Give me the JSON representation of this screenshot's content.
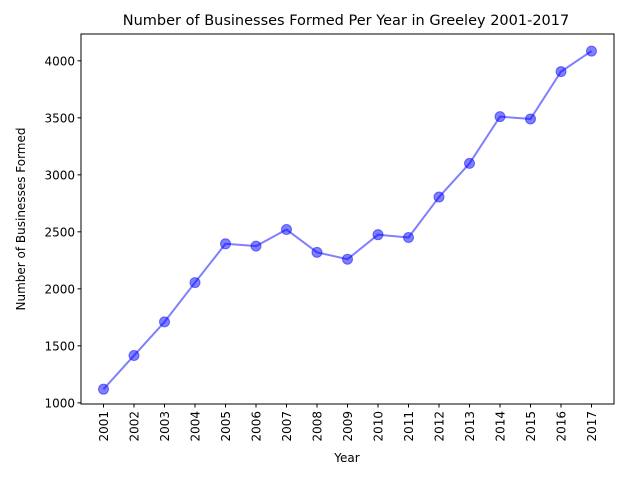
{
  "chart_data": {
    "type": "line",
    "title": "Number of Businesses Formed Per Year in Greeley 2001-2017",
    "xlabel": "Year",
    "ylabel": "Number of Businesses Formed",
    "categories": [
      "2001",
      "2002",
      "2003",
      "2004",
      "2005",
      "2006",
      "2007",
      "2008",
      "2009",
      "2010",
      "2011",
      "2012",
      "2013",
      "2014",
      "2015",
      "2016",
      "2017"
    ],
    "series": [
      {
        "values": [
          1120,
          1415,
          1710,
          2055,
          2395,
          2375,
          2520,
          2320,
          2260,
          2475,
          2450,
          2805,
          3100,
          3510,
          3490,
          3905,
          4085
        ]
      }
    ],
    "yticks": [
      1000,
      1500,
      2000,
      2500,
      3000,
      3500,
      4000
    ],
    "ylim": [
      990,
      4235
    ],
    "grid": false,
    "legend": "none",
    "colors": {
      "line": "#0000ff",
      "marker": "#0000ff",
      "axis": "#000000"
    }
  }
}
